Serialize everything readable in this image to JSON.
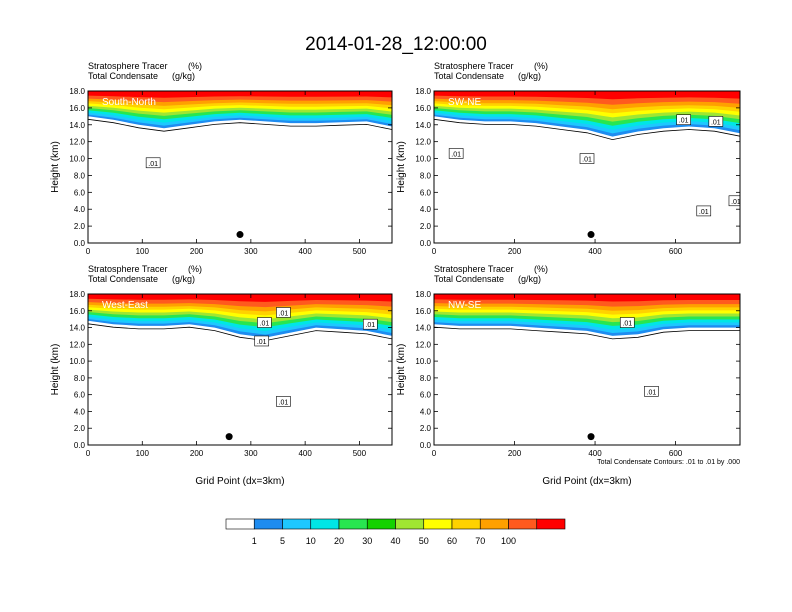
{
  "title": "2014-01-28_12:00:00",
  "shared": {
    "ylabel": "Height (km)",
    "xlabel": "Grid Point (dx=3km)",
    "tracer_label": "Stratosphere Tracer",
    "tracer_unit": "(%)",
    "condensate_label": "Total Condensate",
    "condensate_unit": "(g/kg)",
    "contour_note": "Total Condensate Contours: .01 to .01 by .000",
    "contour_value_label": ".01"
  },
  "colorbar": {
    "levels": [
      "1",
      "5",
      "10",
      "20",
      "30",
      "40",
      "50",
      "60",
      "70",
      "100"
    ],
    "colors": [
      "#ffffff",
      "#1e8cf0",
      "#1ec8ff",
      "#00e6e6",
      "#28e650",
      "#14d200",
      "#a0e632",
      "#ffff00",
      "#ffd200",
      "#ffa000",
      "#ff5a1e",
      "#ff0000"
    ]
  },
  "chart_data": [
    {
      "type": "heatmap",
      "name": "South-North",
      "ylim": [
        0,
        18
      ],
      "xlim": [
        0,
        560
      ],
      "xticks": [
        "0",
        "100",
        "200",
        "300",
        "400",
        "500"
      ],
      "yticks": [
        "0.0",
        "2.0",
        "4.0",
        "6.0",
        "8.0",
        "10.0",
        "12.0",
        "14.0",
        "16.0",
        "18.0"
      ],
      "marker": {
        "x": 280,
        "y": 1.0
      },
      "contour_label_positions": [
        [
          120,
          9.5
        ]
      ],
      "band_bottom_km": [
        15.0,
        14.6,
        14.0,
        13.6,
        14.0,
        14.4,
        14.6,
        14.4,
        14.2,
        14.2,
        14.3,
        14.4,
        13.8
      ]
    },
    {
      "type": "heatmap",
      "name": "SW-NE",
      "ylim": [
        0,
        18
      ],
      "xlim": [
        0,
        760
      ],
      "xticks": [
        "0",
        "200",
        "400",
        "600"
      ],
      "yticks": [
        "0.0",
        "2.0",
        "4.0",
        "6.0",
        "8.0",
        "10.0",
        "12.0",
        "14.0",
        "16.0",
        "18.0"
      ],
      "marker": {
        "x": 390,
        "y": 1.0
      },
      "contour_label_positions": [
        [
          55,
          10.6
        ],
        [
          380,
          10.0
        ],
        [
          620,
          14.6
        ],
        [
          700,
          14.4
        ],
        [
          670,
          3.8
        ],
        [
          750,
          5.0
        ]
      ],
      "band_bottom_km": [
        15.0,
        14.6,
        14.4,
        14.4,
        14.2,
        13.8,
        13.4,
        12.6,
        13.2,
        13.6,
        13.8,
        13.6,
        13.0
      ]
    },
    {
      "type": "heatmap",
      "name": "West-East",
      "ylim": [
        0,
        18
      ],
      "xlim": [
        0,
        560
      ],
      "xticks": [
        "0",
        "100",
        "200",
        "300",
        "400",
        "500"
      ],
      "yticks": [
        "0.0",
        "2.0",
        "4.0",
        "6.0",
        "8.0",
        "10.0",
        "12.0",
        "14.0",
        "16.0",
        "18.0"
      ],
      "marker": {
        "x": 260,
        "y": 1.0
      },
      "contour_label_positions": [
        [
          325,
          14.6
        ],
        [
          320,
          12.4
        ],
        [
          360,
          15.8
        ],
        [
          360,
          5.2
        ],
        [
          520,
          14.4
        ]
      ],
      "band_bottom_km": [
        14.8,
        14.4,
        14.2,
        14.2,
        14.4,
        14.0,
        13.2,
        12.8,
        13.4,
        14.0,
        13.8,
        13.6,
        13.0
      ]
    },
    {
      "type": "heatmap",
      "name": "NW-SE",
      "ylim": [
        0,
        18
      ],
      "xlim": [
        0,
        760
      ],
      "xticks": [
        "0",
        "200",
        "400",
        "600"
      ],
      "yticks": [
        "0.0",
        "2.0",
        "4.0",
        "6.0",
        "8.0",
        "10.0",
        "12.0",
        "14.0",
        "16.0",
        "18.0"
      ],
      "marker": {
        "x": 390,
        "y": 1.0
      },
      "contour_label_positions": [
        [
          480,
          14.6
        ],
        [
          540,
          6.4
        ]
      ],
      "band_bottom_km": [
        14.4,
        14.2,
        14.2,
        14.2,
        14.0,
        13.8,
        13.6,
        13.0,
        13.2,
        13.8,
        14.0,
        14.0,
        14.0
      ]
    }
  ]
}
